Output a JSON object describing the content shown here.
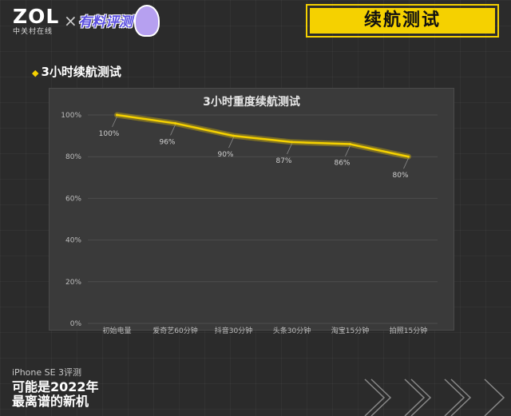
{
  "header": {
    "logo_main": "ZOL",
    "logo_sub": "中关村在线",
    "partner_mark": "有料评测",
    "banner_title": "续航测试"
  },
  "section": {
    "title": "3小时续航测试"
  },
  "chart_data": {
    "type": "line",
    "title": "3小时重度续航测试",
    "categories": [
      "初始电量",
      "爱奇艺60分钟",
      "抖音30分钟",
      "头条30分钟",
      "淘宝15分钟",
      "拍照15分钟"
    ],
    "series": [
      {
        "values": [
          100,
          96,
          90,
          87,
          86,
          80
        ],
        "color": "#f5d100"
      }
    ],
    "data_labels": [
      "100%",
      "96%",
      "90%",
      "87%",
      "86%",
      "80%"
    ],
    "y_ticks": [
      "0%",
      "20%",
      "40%",
      "60%",
      "80%",
      "100%"
    ],
    "ylim": [
      0,
      100
    ],
    "xlabel": "",
    "ylabel": "",
    "grid": true,
    "legend": "none"
  },
  "footer": {
    "line1": "iPhone SE 3评测",
    "line2": "可能是2022年",
    "line3": "最离谱的新机"
  },
  "colors": {
    "accent": "#f5d100",
    "background": "#2b2b2b",
    "panel": "#3a3a3a"
  }
}
